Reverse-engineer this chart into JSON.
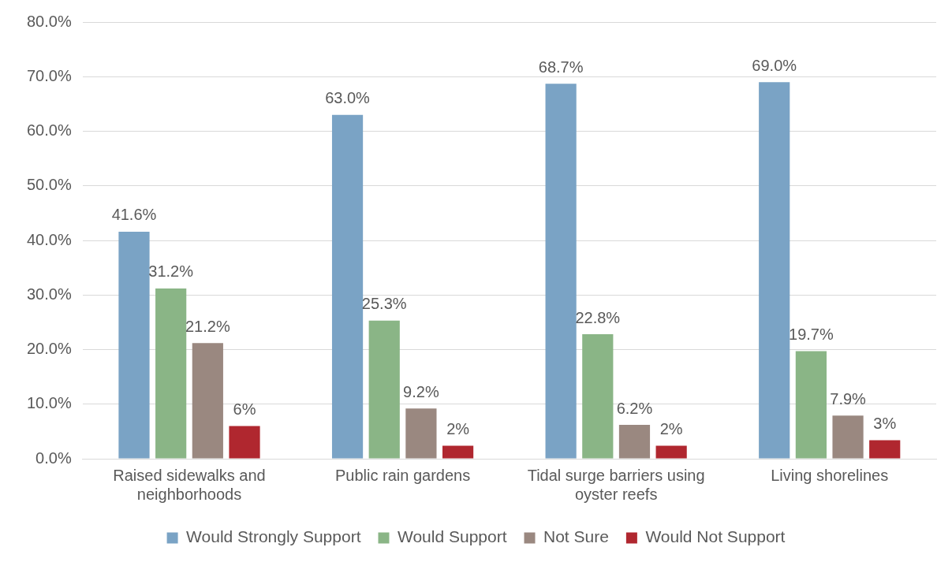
{
  "chart_data": {
    "type": "bar",
    "categories": [
      "Raised sidewalks and neighborhoods",
      "Public rain gardens",
      "Tidal surge barriers using oyster reefs",
      "Living shorelines"
    ],
    "series": [
      {
        "name": "Would Strongly Support",
        "color": "#7aa3c5",
        "values": [
          41.6,
          63.0,
          68.7,
          69.0
        ],
        "value_labels": [
          "41.6%",
          "63.0%",
          "68.7%",
          "69.0%"
        ]
      },
      {
        "name": "Would Support",
        "color": "#8ab586",
        "values": [
          31.2,
          25.3,
          22.8,
          19.7
        ],
        "value_labels": [
          "31.2%",
          "25.3%",
          "22.8%",
          "19.7%"
        ]
      },
      {
        "name": "Not Sure",
        "color": "#9a8880",
        "values": [
          21.2,
          9.2,
          6.2,
          7.9
        ],
        "value_labels": [
          "21.2%",
          "9.2%",
          "6.2%",
          "7.9%"
        ]
      },
      {
        "name": "Would Not Support",
        "color": "#b0272f",
        "values": [
          6.0,
          2.4,
          2.4,
          3.4
        ],
        "value_labels": [
          "6%",
          "2%",
          "2%",
          "3%"
        ]
      }
    ],
    "ylim": [
      0,
      80
    ],
    "yticks": [
      {
        "value": 0,
        "label": "0.0%"
      },
      {
        "value": 10,
        "label": "10.0%"
      },
      {
        "value": 20,
        "label": "20.0%"
      },
      {
        "value": 30,
        "label": "30.0%"
      },
      {
        "value": 40,
        "label": "40.0%"
      },
      {
        "value": 50,
        "label": "50.0%"
      },
      {
        "value": 60,
        "label": "60.0%"
      },
      {
        "value": 70,
        "label": "70.0%"
      },
      {
        "value": 80,
        "label": "80.0%"
      }
    ],
    "grid": "y",
    "legend": "bottom"
  }
}
